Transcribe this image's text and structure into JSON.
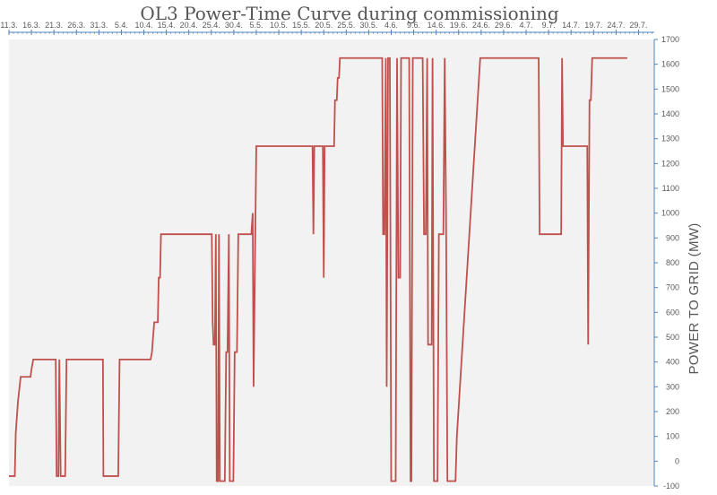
{
  "chart_data": {
    "type": "line",
    "title": "OL3 Power-Time Curve during commissioning",
    "ylabel": "POWER TO GRID (MW)",
    "xlabel": "",
    "ylim": [
      -100,
      1700
    ],
    "ytick_values": [
      -100,
      0,
      100,
      200,
      300,
      400,
      500,
      600,
      700,
      800,
      900,
      1000,
      1100,
      1200,
      1300,
      1400,
      1500,
      1600,
      1700
    ],
    "x_tick_labels": [
      "11.3.",
      "16.3.",
      "21.3.",
      "26.3.",
      "31.3.",
      "5.4.",
      "10.4.",
      "15.4.",
      "20.4.",
      "25.4.",
      "30.4.",
      "5.5.",
      "10.5.",
      "15.5.",
      "20.5.",
      "25.5.",
      "30.5.",
      "4.6.",
      "9.6.",
      "14.6.",
      "19.6.",
      "24.6.",
      "29.6.",
      "4.7.",
      "9.7.",
      "14.7.",
      "19.7.",
      "24.7.",
      "29.7."
    ],
    "x_tick_days": [
      0,
      5,
      10,
      15,
      20,
      25,
      30,
      35,
      40,
      45,
      50,
      55,
      60,
      65,
      70,
      75,
      80,
      85,
      90,
      95,
      100,
      105,
      110,
      115,
      120,
      125,
      130,
      135,
      140
    ],
    "xlim": [
      0,
      143.5
    ],
    "grid": false,
    "line_color": "#c0504d",
    "plot_background": "#f2f2f2",
    "axis_color": "#4f81bd",
    "series": [
      {
        "points": [
          [
            0,
            -60
          ],
          [
            1.3,
            -60
          ],
          [
            1.5,
            110
          ],
          [
            2.0,
            240
          ],
          [
            2.6,
            340
          ],
          [
            4.8,
            340
          ],
          [
            5.0,
            370
          ],
          [
            5.4,
            410
          ],
          [
            10.4,
            410
          ],
          [
            10.6,
            -60
          ],
          [
            11.0,
            -60
          ],
          [
            11.2,
            410
          ],
          [
            11.5,
            -60
          ],
          [
            12.5,
            -60
          ],
          [
            12.8,
            410
          ],
          [
            20.9,
            410
          ],
          [
            21.0,
            -60
          ],
          [
            24.3,
            -60
          ],
          [
            24.6,
            410
          ],
          [
            31.5,
            410
          ],
          [
            31.8,
            440
          ],
          [
            32.3,
            560
          ],
          [
            33.1,
            560
          ],
          [
            33.3,
            740
          ],
          [
            33.6,
            740
          ],
          [
            33.8,
            915
          ],
          [
            45.1,
            915
          ],
          [
            45.3,
            560
          ],
          [
            45.5,
            470
          ],
          [
            45.8,
            470
          ],
          [
            46.0,
            915
          ],
          [
            46.2,
            -80
          ],
          [
            46.5,
            -80
          ],
          [
            46.7,
            915
          ],
          [
            46.9,
            -80
          ],
          [
            48.0,
            -80
          ],
          [
            48.3,
            440
          ],
          [
            48.6,
            440
          ],
          [
            48.9,
            915
          ],
          [
            49.1,
            -80
          ],
          [
            49.9,
            -80
          ],
          [
            50.2,
            440
          ],
          [
            50.7,
            440
          ],
          [
            51.0,
            915
          ],
          [
            53.9,
            915
          ],
          [
            54.2,
            1000
          ],
          [
            54.4,
            300
          ],
          [
            55.0,
            1270
          ],
          [
            67.5,
            1270
          ],
          [
            67.7,
            915
          ],
          [
            67.9,
            1270
          ],
          [
            69.8,
            1270
          ],
          [
            70.0,
            740
          ],
          [
            70.2,
            1270
          ],
          [
            72.3,
            1270
          ],
          [
            72.5,
            1455
          ],
          [
            72.9,
            1455
          ],
          [
            73.1,
            1545
          ],
          [
            73.4,
            1545
          ],
          [
            73.6,
            1625
          ],
          [
            83.0,
            1625
          ],
          [
            83.2,
            915
          ],
          [
            83.5,
            915
          ],
          [
            83.8,
            1625
          ],
          [
            84.0,
            300
          ],
          [
            84.3,
            1625
          ],
          [
            84.7,
            1625
          ],
          [
            85.0,
            -80
          ],
          [
            86.0,
            -80
          ],
          [
            86.3,
            1625
          ],
          [
            86.6,
            740
          ],
          [
            87.0,
            740
          ],
          [
            87.2,
            1625
          ],
          [
            89.0,
            1625
          ],
          [
            89.3,
            -80
          ],
          [
            89.5,
            -80
          ],
          [
            89.8,
            1625
          ],
          [
            92.0,
            1625
          ],
          [
            92.3,
            915
          ],
          [
            92.7,
            915
          ],
          [
            93.0,
            1625
          ],
          [
            93.2,
            470
          ],
          [
            94.0,
            470
          ],
          [
            94.2,
            1625
          ],
          [
            94.5,
            -80
          ],
          [
            95.3,
            -80
          ],
          [
            95.6,
            915
          ],
          [
            96.6,
            915
          ],
          [
            96.9,
            1625
          ],
          [
            97.2,
            1000
          ],
          [
            97.5,
            -80
          ],
          [
            99.3,
            -80
          ],
          [
            99.6,
            100
          ],
          [
            104.8,
            1625
          ],
          [
            117.8,
            1625
          ],
          [
            118.0,
            915
          ],
          [
            122.8,
            915
          ],
          [
            123.0,
            1625
          ],
          [
            123.2,
            1270
          ],
          [
            128.6,
            1270
          ],
          [
            128.8,
            470
          ],
          [
            129.1,
            1455
          ],
          [
            129.4,
            1455
          ],
          [
            129.7,
            1625
          ],
          [
            137.5,
            1625
          ]
        ]
      }
    ]
  }
}
